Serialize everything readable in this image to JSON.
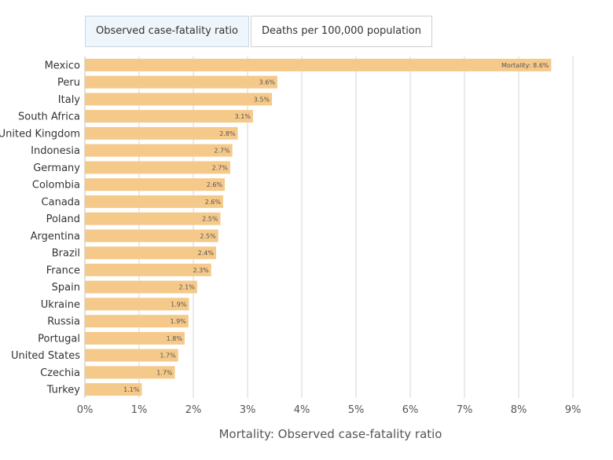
{
  "tabs": [
    {
      "label": "Observed case-fatality ratio",
      "active": true
    },
    {
      "label": "Deaths per 100,000 population",
      "active": false
    }
  ],
  "colors": {
    "bar": "#f5c98a",
    "grid": "#d6d6d6",
    "tab_active_bg": "#eef5fb"
  },
  "chart_data": {
    "type": "bar",
    "orientation": "horizontal",
    "title": "",
    "xlabel": "Mortality: Observed case-fatality ratio",
    "ylabel": "",
    "xlim": [
      0,
      9
    ],
    "ticks": [
      0,
      1,
      2,
      3,
      4,
      5,
      6,
      7,
      8,
      9
    ],
    "tick_labels": [
      "0%",
      "1%",
      "2%",
      "3%",
      "4%",
      "5%",
      "6%",
      "7%",
      "8%",
      "9%"
    ],
    "grid": true,
    "categories": [
      "Mexico",
      "Peru",
      "Italy",
      "South Africa",
      "United Kingdom",
      "Indonesia",
      "Germany",
      "Colombia",
      "Canada",
      "Poland",
      "Argentina",
      "Brazil",
      "France",
      "Spain",
      "Ukraine",
      "Russia",
      "Portugal",
      "United States",
      "Czechia",
      "Turkey"
    ],
    "values": [
      8.6,
      3.55,
      3.45,
      3.1,
      2.82,
      2.72,
      2.68,
      2.58,
      2.55,
      2.5,
      2.46,
      2.42,
      2.33,
      2.07,
      1.92,
      1.91,
      1.84,
      1.72,
      1.66,
      1.05
    ],
    "data_labels": [
      "Mortality: 8.6%",
      "3.6%",
      "3.5%",
      "3.1%",
      "2.8%",
      "2.7%",
      "2.7%",
      "2.6%",
      "2.6%",
      "2.5%",
      "2.5%",
      "2.4%",
      "2.3%",
      "2.1%",
      "1.9%",
      "1.9%",
      "1.8%",
      "1.7%",
      "1.7%",
      "1.1%"
    ]
  }
}
